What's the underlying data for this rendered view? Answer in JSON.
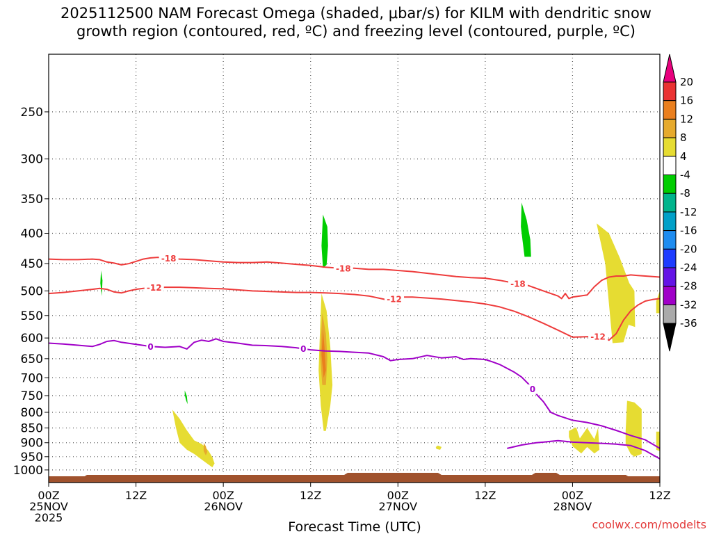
{
  "chart_data": {
    "type": "time-height cross section",
    "title_line1": "2025112500 NAM Forecast Omega (shaded, μbar/s) for KILM with dendritic snow",
    "title_line2": "growth region (contoured, red, ºC) and freezing level (contoured, purple, ºC)",
    "xlabel": "Forecast Time (UTC)",
    "credit": "coolwx.com/modelts",
    "x_range_hours": [
      0,
      84
    ],
    "y_range_hPa": [
      200,
      1050
    ],
    "y_ticks": [
      "250",
      "300",
      "350",
      "400",
      "450",
      "500",
      "550",
      "600",
      "650",
      "700",
      "750",
      "800",
      "850",
      "900",
      "950",
      "1000"
    ],
    "x_ticks": [
      {
        "hour": 0,
        "line1": "00Z",
        "line2": "25NOV",
        "line3": "2025"
      },
      {
        "hour": 12,
        "line1": "12Z",
        "line2": "",
        "line3": ""
      },
      {
        "hour": 24,
        "line1": "00Z",
        "line2": "26NOV",
        "line3": ""
      },
      {
        "hour": 36,
        "line1": "12Z",
        "line2": "",
        "line3": ""
      },
      {
        "hour": 48,
        "line1": "00Z",
        "line2": "27NOV",
        "line3": ""
      },
      {
        "hour": 60,
        "line1": "12Z",
        "line2": "",
        "line3": ""
      },
      {
        "hour": 72,
        "line1": "00Z",
        "line2": "28NOV",
        "line3": ""
      },
      {
        "hour": 84,
        "line1": "12Z",
        "line2": "",
        "line3": ""
      }
    ],
    "colorbar": {
      "ticks": [
        "20",
        "16",
        "12",
        "8",
        "4",
        "-4",
        "-8",
        "-12",
        "-16",
        "-20",
        "-24",
        "-28",
        "-32",
        "-36"
      ],
      "colors": [
        "#e8007d",
        "#ea3232",
        "#ea7f1e",
        "#e6aa2d",
        "#e6dc32",
        "#ffffff",
        "#00cd00",
        "#00b48c",
        "#00a0c8",
        "#1e8cf0",
        "#1e3cff",
        "#6414e6",
        "#a000c8",
        "#aaaaaa",
        "#000000"
      ]
    },
    "series": [
      {
        "name": "dendritic growth top (-18 ºC)",
        "color": "#ee3b3b",
        "label": "-18",
        "label_hours": [
          16.5,
          40.5,
          64.5
        ],
        "x": [
          0,
          2,
          4,
          6,
          7,
          8,
          9,
          10,
          11,
          12,
          13,
          14,
          15,
          16,
          18,
          20,
          22,
          24,
          26,
          28,
          30,
          32,
          34,
          36,
          38,
          40,
          42,
          44,
          46,
          48,
          50,
          52,
          54,
          56,
          58,
          60,
          62,
          64,
          66,
          68,
          70,
          70.5,
          71,
          71.5,
          72,
          73,
          74,
          75,
          76,
          77,
          78,
          79,
          80,
          81,
          82,
          83,
          84
        ],
        "y": [
          442,
          443,
          443,
          442,
          443,
          447,
          449,
          452,
          450,
          446,
          442,
          440,
          439,
          440,
          442,
          443,
          445,
          447,
          448,
          448,
          447,
          449,
          451,
          453,
          456,
          458,
          458,
          460,
          460,
          462,
          464,
          467,
          470,
          473,
          475,
          476,
          480,
          485,
          490,
          500,
          510,
          515,
          505,
          515,
          512,
          510,
          508,
          492,
          480,
          474,
          472,
          472,
          470,
          471,
          472,
          473,
          474
        ]
      },
      {
        "name": "dendritic growth bottom (-12 ºC)",
        "color": "#ee3b3b",
        "label": "-12",
        "label_hours": [
          14.5,
          47.5,
          75.5
        ],
        "x": [
          0,
          2,
          4,
          6,
          7,
          8,
          9,
          10,
          11,
          12,
          13,
          14,
          16,
          18,
          20,
          22,
          24,
          26,
          28,
          30,
          32,
          34,
          36,
          38,
          40,
          42,
          44,
          46,
          47,
          48,
          50,
          52,
          54,
          56,
          58,
          60,
          62,
          64,
          66,
          68,
          70,
          72,
          74,
          76,
          77,
          78,
          79,
          80,
          81,
          82,
          83,
          84
        ],
        "y": [
          505,
          503,
          500,
          497,
          495,
          497,
          502,
          504,
          500,
          497,
          495,
          494,
          493,
          493,
          494,
          495,
          496,
          498,
          500,
          501,
          502,
          503,
          503,
          504,
          505,
          507,
          510,
          516,
          520,
          512,
          512,
          514,
          516,
          519,
          522,
          526,
          532,
          541,
          553,
          567,
          582,
          598,
          597,
          596,
          605,
          590,
          560,
          540,
          528,
          520,
          517,
          515
        ]
      },
      {
        "name": "freezing level (0 ºC)",
        "color": "#a000c8",
        "label": "0",
        "label_hours": [
          14,
          35,
          66.5
        ],
        "x": [
          0,
          2,
          4,
          6,
          7,
          8,
          9,
          10,
          12,
          14,
          16,
          18,
          19,
          20,
          21,
          22,
          23,
          24,
          26,
          28,
          30,
          32,
          34,
          36,
          38,
          40,
          42,
          44,
          46,
          47,
          48,
          50,
          52,
          54,
          56,
          57,
          58,
          60,
          61,
          62,
          64,
          65,
          66,
          67,
          68,
          69,
          70,
          72,
          74,
          76,
          78,
          80,
          82,
          84
        ],
        "y": [
          612,
          614,
          617,
          620,
          615,
          608,
          606,
          610,
          615,
          620,
          622,
          620,
          626,
          610,
          605,
          608,
          602,
          608,
          612,
          617,
          618,
          620,
          623,
          628,
          631,
          632,
          634,
          636,
          645,
          655,
          652,
          650,
          642,
          648,
          645,
          652,
          650,
          652,
          658,
          665,
          685,
          698,
          718,
          745,
          768,
          800,
          810,
          825,
          832,
          843,
          858,
          875,
          890,
          920
        ],
        "x2": [
          63,
          65,
          67,
          68,
          69,
          70,
          71,
          72,
          74,
          76,
          78,
          80,
          82,
          84
        ],
        "y2": [
          920,
          908,
          900,
          898,
          895,
          893,
          895,
          898,
          900,
          902,
          905,
          910,
          928,
          958
        ]
      }
    ],
    "omega_regions": [
      {
        "color": "#e6dc32",
        "kind": "upward",
        "x": [
          17,
          18,
          19,
          20,
          21,
          21.5,
          22,
          22.5,
          22.8,
          22.5,
          22,
          21,
          20,
          19,
          18,
          17.5
        ],
        "y": [
          792,
          820,
          858,
          892,
          904,
          915,
          930,
          952,
          975,
          990,
          980,
          960,
          940,
          925,
          900,
          850
        ]
      },
      {
        "color": "#e6aa2d",
        "kind": "upward",
        "x": [
          21.3,
          21.6,
          21.8,
          21.6,
          21.3
        ],
        "y": [
          900,
          912,
          932,
          945,
          930
        ]
      },
      {
        "color": "#00cd00",
        "kind": "downward",
        "x": [
          7.2,
          7.4,
          7.3,
          7.1
        ],
        "y": [
          462,
          480,
          510,
          485
        ]
      },
      {
        "color": "#00cd00",
        "kind": "downward",
        "x": [
          18.7,
          19,
          19.1,
          18.9,
          18.7
        ],
        "y": [
          735,
          752,
          775,
          765,
          748
        ]
      },
      {
        "color": "#00cd00",
        "kind": "downward",
        "x": [
          37.7,
          38.3,
          38.4,
          38.2,
          37.7,
          37.5
        ],
        "y": [
          372,
          390,
          420,
          452,
          458,
          420
        ]
      },
      {
        "color": "#e6dc32",
        "kind": "upward",
        "x": [
          37.5,
          38.2,
          38.7,
          39,
          38.7,
          38.1,
          37.8,
          37.4,
          37.1,
          37.3
        ],
        "y": [
          505,
          540,
          620,
          720,
          780,
          860,
          860,
          780,
          680,
          580
        ]
      },
      {
        "color": "#e6aa2d",
        "kind": "upward",
        "x": [
          37.6,
          38.1,
          38.3,
          38.1,
          37.6,
          37.3
        ],
        "y": [
          545,
          590,
          650,
          720,
          720,
          640
        ]
      },
      {
        "color": "#ea7f1e",
        "kind": "upward",
        "x": [
          37.7,
          37.9,
          38.1,
          37.8,
          37.5
        ],
        "y": [
          580,
          620,
          680,
          700,
          640
        ]
      },
      {
        "color": "#e6dc32",
        "kind": "upward",
        "x": [
          53.5,
          54,
          53.8,
          53.3,
          53.2
        ],
        "y": [
          910,
          915,
          925,
          922,
          915
        ]
      },
      {
        "color": "#00cd00",
        "kind": "downward",
        "x": [
          65,
          65.7,
          66.2,
          66.3,
          65.4,
          64.9
        ],
        "y": [
          355,
          380,
          410,
          438,
          438,
          390
        ]
      },
      {
        "color": "#e6dc32",
        "kind": "upward",
        "x": [
          75.3,
          77,
          78.5,
          79.8,
          80.5,
          80.6,
          79.7,
          79,
          77.5,
          76.5
        ],
        "y": [
          385,
          400,
          440,
          485,
          500,
          575,
          570,
          610,
          612,
          450
        ]
      },
      {
        "color": "#e6dc32",
        "kind": "upward",
        "x": [
          71.5,
          72.5,
          73,
          74,
          75,
          75.5,
          75.7,
          75,
          74,
          73.2,
          72,
          71.5
        ],
        "y": [
          860,
          848,
          885,
          850,
          888,
          850,
          925,
          938,
          915,
          938,
          912,
          880
        ]
      },
      {
        "color": "#e6dc32",
        "kind": "upward",
        "x": [
          79.5,
          80.5,
          81.5,
          81.5,
          80.5,
          80,
          79.3,
          79.3
        ],
        "y": [
          765,
          770,
          790,
          940,
          950,
          940,
          905,
          860
        ]
      },
      {
        "color": "#e6dc32",
        "kind": "upward",
        "x": [
          83.5,
          84,
          84,
          83.5
        ],
        "y": [
          520,
          500,
          545,
          545
        ]
      },
      {
        "color": "#e6dc32",
        "kind": "upward",
        "x": [
          83.5,
          84,
          84,
          83.5
        ],
        "y": [
          862,
          862,
          930,
          925
        ]
      }
    ]
  }
}
